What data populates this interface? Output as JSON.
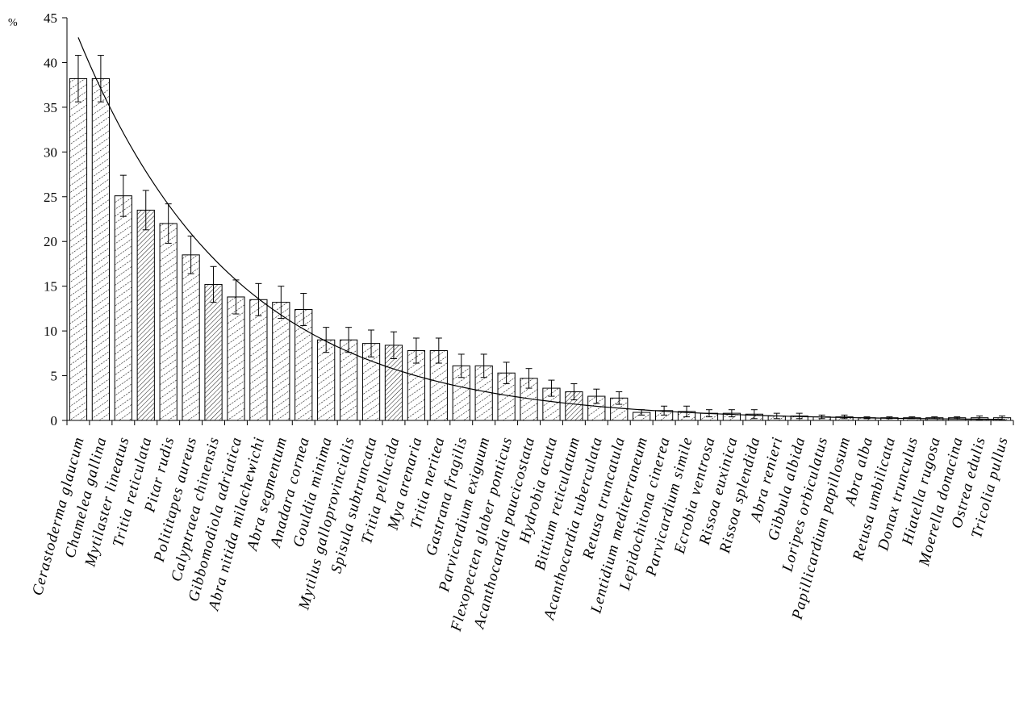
{
  "chart_data": {
    "type": "bar",
    "ylabel": "%",
    "ylim": [
      0,
      45
    ],
    "yticks": [
      0,
      5,
      10,
      15,
      20,
      25,
      30,
      35,
      40,
      45
    ],
    "grid": false,
    "legend": "none",
    "categories": [
      "Cerastoderma glaucum",
      "Chamelea gallina",
      "Mytilaster lineatus",
      "Tritia reticulata",
      "Pitar rudis",
      "Polititapes aureus",
      "Calyptraea chinensis",
      "Gibbomodiola adriatica",
      "Abra nitida milachewichi",
      "Abra segmentum",
      "Anadara cornea",
      "Gouldia minima",
      "Mytilus galloprovincialis",
      "Spisula subtruncata",
      "Tritia pellucida",
      "Mya arenaria",
      "Tritia neritea",
      "Gastrana fragilis",
      "Parvicardium exiguum",
      "Flexopecten glaber ponticus",
      "Acanthocardia paucicostata",
      "Hydrobia acuta",
      "Bittium reticulatum",
      "Acanthocardia tuberculata",
      "Retusa truncatula",
      "Lentidium mediterraneum",
      "Lepidochitona cinerea",
      "Parvicardium simile",
      "Ecrobia ventrosa",
      "Rissoa euxinica",
      "Rissoa splendida",
      "Abra renieri",
      "Gibbula albida",
      "Loripes orbiculatus",
      "Papillicardium papillosum",
      "Abra alba",
      "Retusa umbilicata",
      "Donax trunculus",
      "Hiatella rugosa",
      "Moerella donacina",
      "Ostrea edulis",
      "Tricolia pullus"
    ],
    "values": [
      38.2,
      38.2,
      25.1,
      23.5,
      22.0,
      18.5,
      15.2,
      13.8,
      13.5,
      13.2,
      12.4,
      9.0,
      9.0,
      8.6,
      8.4,
      7.8,
      7.8,
      6.1,
      6.1,
      5.3,
      4.7,
      3.6,
      3.2,
      2.7,
      2.5,
      0.9,
      1.1,
      1.0,
      0.8,
      0.8,
      0.7,
      0.5,
      0.5,
      0.4,
      0.4,
      0.3,
      0.3,
      0.3,
      0.3,
      0.3,
      0.3,
      0.3
    ],
    "errors": [
      2.6,
      2.6,
      2.3,
      2.2,
      2.2,
      2.1,
      2.0,
      1.9,
      1.8,
      1.8,
      1.8,
      1.4,
      1.4,
      1.5,
      1.5,
      1.4,
      1.4,
      1.3,
      1.3,
      1.2,
      1.1,
      0.9,
      0.9,
      0.8,
      0.7,
      0.3,
      0.5,
      0.6,
      0.4,
      0.4,
      0.5,
      0.3,
      0.3,
      0.2,
      0.2,
      0.1,
      0.1,
      0.1,
      0.1,
      0.1,
      0.2,
      0.2
    ],
    "trendline": {
      "type": "exponential",
      "y_at_first": 42.8,
      "y_at_last": 0.12
    }
  }
}
